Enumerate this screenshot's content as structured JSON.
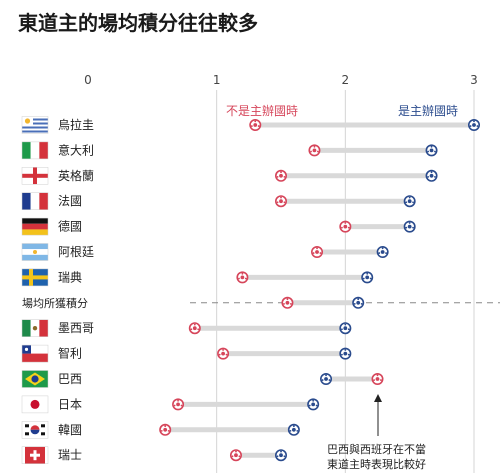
{
  "chart_data": {
    "type": "dumbbell",
    "title": "東道主的場均積分往往較多",
    "xlim": [
      0,
      3
    ],
    "ticks": [
      0,
      1,
      2,
      3
    ],
    "legend": {
      "non_host": {
        "label": "不是主辦國時",
        "color": "#d6455a"
      },
      "host": {
        "label": "是主辦國時",
        "color": "#2a4b8d"
      }
    },
    "rows": [
      {
        "name": "烏拉圭",
        "flag": "uruguay",
        "non_host": 1.3,
        "host": 3.0
      },
      {
        "name": "意大利",
        "flag": "italy",
        "non_host": 1.76,
        "host": 2.67
      },
      {
        "name": "英格蘭",
        "flag": "england",
        "non_host": 1.5,
        "host": 2.67
      },
      {
        "name": "法國",
        "flag": "france",
        "non_host": 1.5,
        "host": 2.5
      },
      {
        "name": "德國",
        "flag": "germany",
        "non_host": 2.0,
        "host": 2.5
      },
      {
        "name": "阿根廷",
        "flag": "argentina",
        "non_host": 1.78,
        "host": 2.29
      },
      {
        "name": "瑞典",
        "flag": "sweden",
        "non_host": 1.2,
        "host": 2.17
      },
      {
        "name": "場均所獲積分",
        "flag": null,
        "non_host": 1.55,
        "host": 2.1,
        "average": true
      },
      {
        "name": "墨西哥",
        "flag": "mexico",
        "non_host": 0.83,
        "host": 2.0
      },
      {
        "name": "智利",
        "flag": "chile",
        "non_host": 1.05,
        "host": 2.0
      },
      {
        "name": "巴西",
        "flag": "brazil",
        "non_host": 2.25,
        "host": 1.85
      },
      {
        "name": "日本",
        "flag": "japan",
        "non_host": 0.7,
        "host": 1.75
      },
      {
        "name": "韓國",
        "flag": "korea",
        "non_host": 0.6,
        "host": 1.6
      },
      {
        "name": "瑞士",
        "flag": "switzerland",
        "non_host": 1.15,
        "host": 1.5
      }
    ],
    "annotation": {
      "lines": [
        "巴西與西班牙在不當",
        "東道主時表現比較好"
      ]
    }
  }
}
